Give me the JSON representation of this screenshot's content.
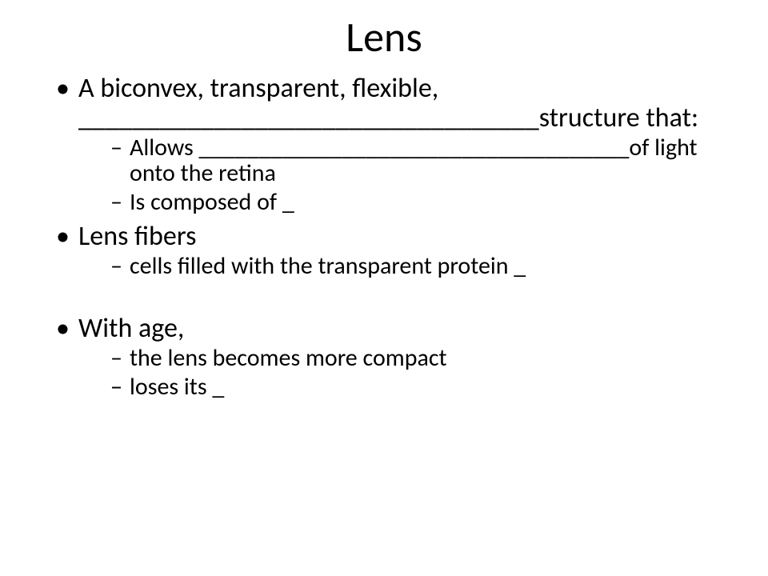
{
  "title": "Lens",
  "bullets": {
    "b1": "A biconvex, transparent, flexible, __________________________________structure that:",
    "b1_subs": {
      "s1": "Allows ____________________________________of light onto the retina",
      "s2": "Is composed of _"
    },
    "b2": "Lens fibers",
    "b2_subs": {
      "s1": "cells filled with the transparent protein _"
    },
    "b3": "With age,",
    "b3_subs": {
      "s1": "the lens becomes more compact",
      "s2": "",
      "s3": "loses its _"
    }
  }
}
